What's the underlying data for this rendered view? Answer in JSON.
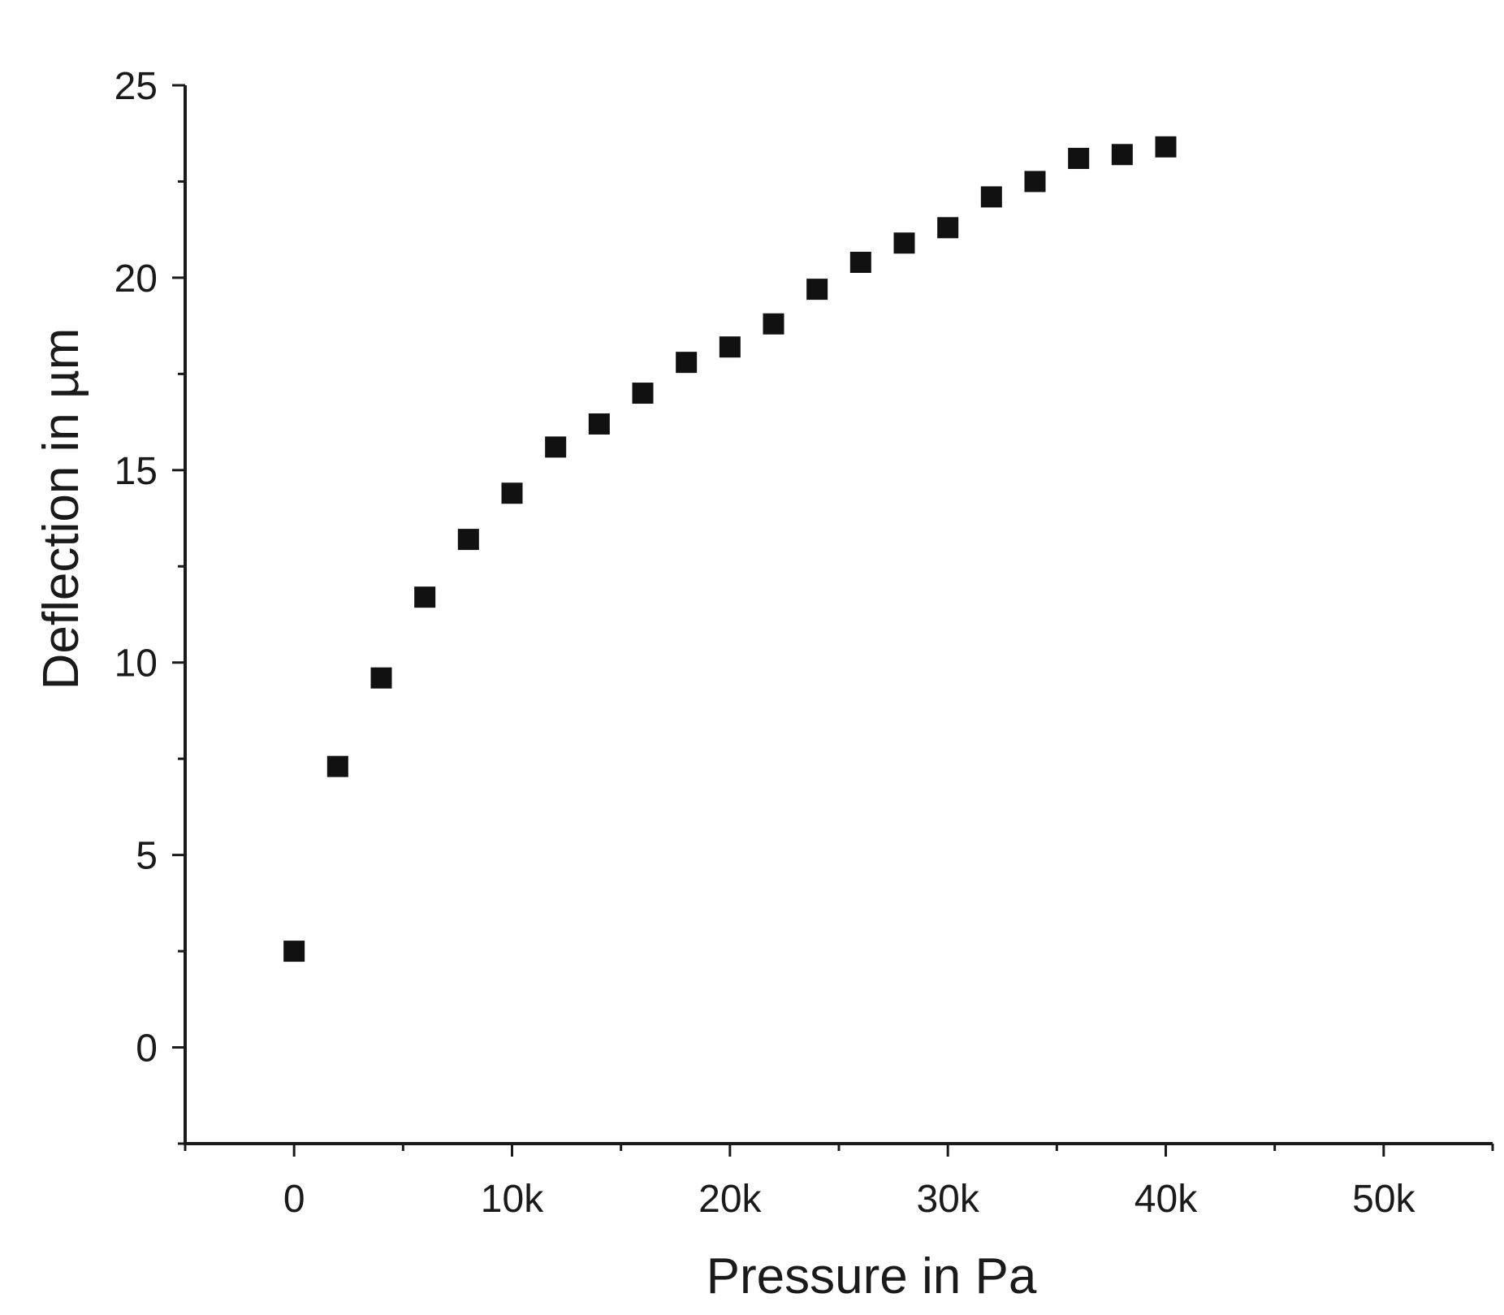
{
  "chart_data": {
    "type": "scatter",
    "title": "",
    "xlabel": "Pressure in Pa",
    "ylabel": "Deflection in µm",
    "xlim": [
      -5000,
      55000
    ],
    "ylim": [
      -2.5,
      25
    ],
    "grid": false,
    "legend": "none",
    "marker": "square",
    "marker_color": "#111111",
    "x_ticks": [
      {
        "value": 0,
        "label": "0"
      },
      {
        "value": 10000,
        "label": "10k"
      },
      {
        "value": 20000,
        "label": "20k"
      },
      {
        "value": 30000,
        "label": "30k"
      },
      {
        "value": 40000,
        "label": "40k"
      },
      {
        "value": 50000,
        "label": "50k"
      }
    ],
    "y_ticks": [
      {
        "value": 0,
        "label": "0"
      },
      {
        "value": 5,
        "label": "5"
      },
      {
        "value": 10,
        "label": "10"
      },
      {
        "value": 15,
        "label": "15"
      },
      {
        "value": 20,
        "label": "20"
      },
      {
        "value": 25,
        "label": "25"
      }
    ],
    "series": [
      {
        "name": "Deflection",
        "x": [
          0,
          2000,
          4000,
          6000,
          8000,
          10000,
          12000,
          14000,
          16000,
          18000,
          20000,
          22000,
          24000,
          26000,
          28000,
          30000,
          32000,
          34000,
          36000,
          38000,
          40000
        ],
        "y": [
          2.5,
          7.3,
          9.6,
          11.7,
          13.2,
          14.4,
          15.6,
          16.2,
          17.0,
          17.8,
          18.2,
          18.8,
          19.7,
          20.4,
          20.9,
          21.3,
          22.1,
          22.5,
          23.1,
          23.2,
          23.4
        ]
      }
    ]
  }
}
